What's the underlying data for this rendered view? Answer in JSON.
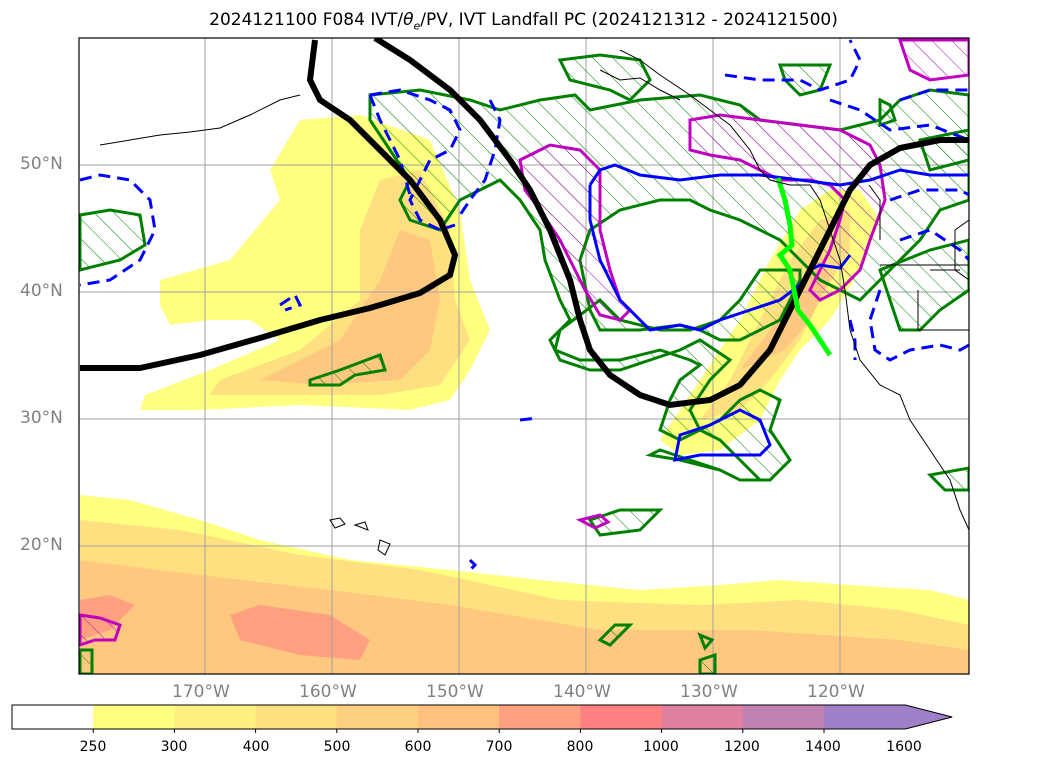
{
  "title": "2024121100 F084 IVT/θe/PV, IVT Landfall PC (2024121312 - 2024121500)",
  "lat_labels": [
    "50°N",
    "40°N",
    "30°N",
    "20°N"
  ],
  "lon_labels": [
    "170°W",
    "160°W",
    "150°W",
    "140°W",
    "130°W",
    "120°W"
  ],
  "colorbar": {
    "ticks": [
      "250",
      "300",
      "400",
      "500",
      "600",
      "700",
      "800",
      "1000",
      "1200",
      "1400",
      "1600"
    ],
    "colors": [
      "#ffffff",
      "#ffff80",
      "#fff080",
      "#ffe080",
      "#ffd080",
      "#ffc080",
      "#ffa080",
      "#ff8080",
      "#e080a0",
      "#c080b0",
      "#a080c8"
    ],
    "extend": "max"
  },
  "layers": {
    "ivt_fill": "#ffe070",
    "pv_hatched_contour": "#008000",
    "theta_e_solid": "#0000ff",
    "theta_e_dashed": "#0000ff",
    "magenta_contour": "#c000c0",
    "jet_axis": "#000000",
    "landfall_line": "#00ff00"
  }
}
